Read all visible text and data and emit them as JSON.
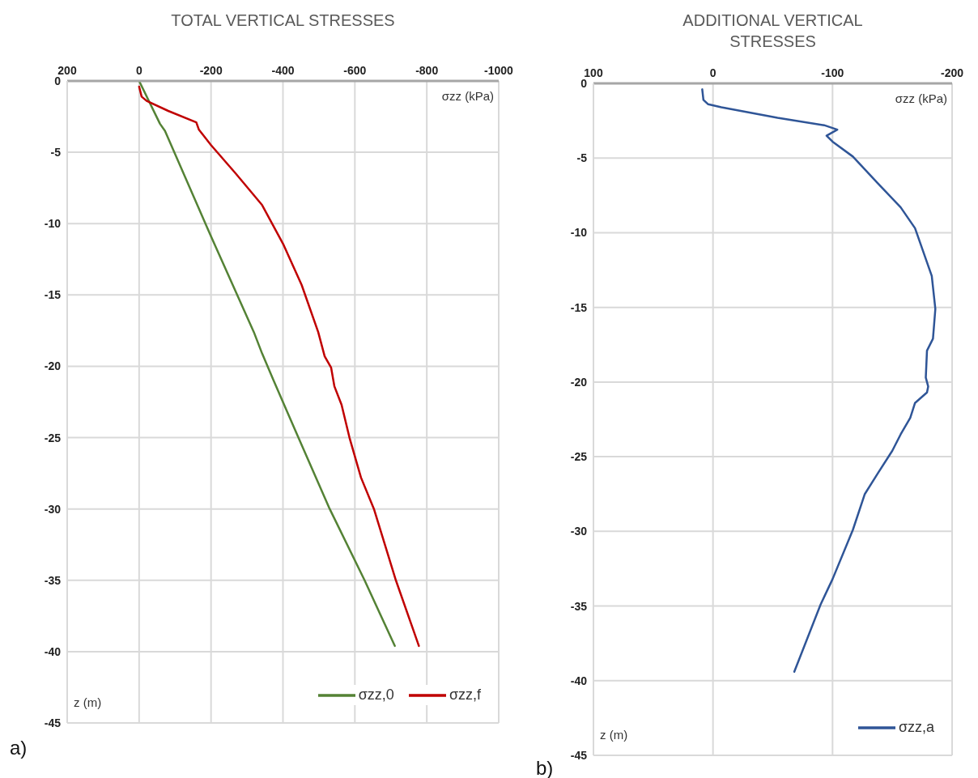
{
  "chart_data": [
    {
      "type": "line",
      "title": "TOTAL VERTICAL STRESSES",
      "xlabel": "σzz (kPa)",
      "ylabel": "z (m)",
      "xlim": [
        200,
        -1000
      ],
      "xticks": [
        200,
        0,
        -200,
        -400,
        -600,
        -800,
        -1000
      ],
      "ylim": [
        -45,
        0
      ],
      "yticks": [
        0,
        -5,
        -10,
        -15,
        -20,
        -25,
        -30,
        -35,
        -40,
        -45
      ],
      "grid": true,
      "legend": "bottom right",
      "annotations": [
        "a)"
      ],
      "series": [
        {
          "name": "σzz,0",
          "color": "#548235",
          "x": [
            0,
            -58,
            -72,
            -200,
            -319,
            -342,
            -374,
            -443,
            -530,
            -627,
            -711
          ],
          "values": [
            0,
            -3.0,
            -3.5,
            -10.9,
            -17.6,
            -19.1,
            -21,
            -25,
            -30,
            -35,
            -39.6
          ]
        },
        {
          "name": "σzz,f",
          "color": "#c00000",
          "x": [
            0,
            -7,
            -21,
            -81,
            -159,
            -166,
            -200,
            -269,
            -342,
            -402,
            -452,
            -498,
            -516,
            -534,
            -543,
            -563,
            -585,
            -617,
            -653,
            -714,
            -778
          ],
          "values": [
            -0.4,
            -1.1,
            -1.4,
            -2.1,
            -2.9,
            -3.4,
            -4.5,
            -6.5,
            -8.7,
            -11.5,
            -14.3,
            -17.6,
            -19.3,
            -20.1,
            -21.4,
            -22.7,
            -25,
            -27.8,
            -30,
            -35,
            -39.6
          ]
        }
      ]
    },
    {
      "type": "line",
      "title": "ADDITIONAL VERTICAL STRESSES",
      "xlabel": "σzz (kPa)",
      "ylabel": "z (m)",
      "xlim": [
        100,
        -200
      ],
      "xticks": [
        100,
        0,
        -100,
        -200
      ],
      "ylim": [
        -45,
        0
      ],
      "yticks": [
        0,
        -5,
        -10,
        -15,
        -20,
        -25,
        -30,
        -35,
        -40,
        -45
      ],
      "grid": true,
      "legend": "bottom right",
      "annotations": [
        "b)"
      ],
      "series": [
        {
          "name": "σzz,a",
          "color": "#2f5597",
          "x": [
            9,
            8,
            4,
            -7,
            -54,
            -93,
            -104,
            -95,
            -100,
            -117,
            -138,
            -157,
            -169,
            -183,
            -186,
            -184,
            -179,
            -178,
            -180,
            -179,
            -169,
            -165,
            -157,
            -150,
            -138,
            -127,
            -117,
            -100,
            -90,
            -68
          ],
          "values": [
            -0.4,
            -1.1,
            -1.4,
            -1.6,
            -2.3,
            -2.8,
            -3.1,
            -3.5,
            -3.9,
            -4.9,
            -6.7,
            -8.3,
            -9.7,
            -12.9,
            -15.1,
            -17.1,
            -17.9,
            -19.7,
            -20.3,
            -20.7,
            -21.4,
            -22.4,
            -23.5,
            -24.6,
            -26.1,
            -27.5,
            -29.9,
            -33.2,
            -34.9,
            -39.4
          ]
        }
      ]
    }
  ]
}
